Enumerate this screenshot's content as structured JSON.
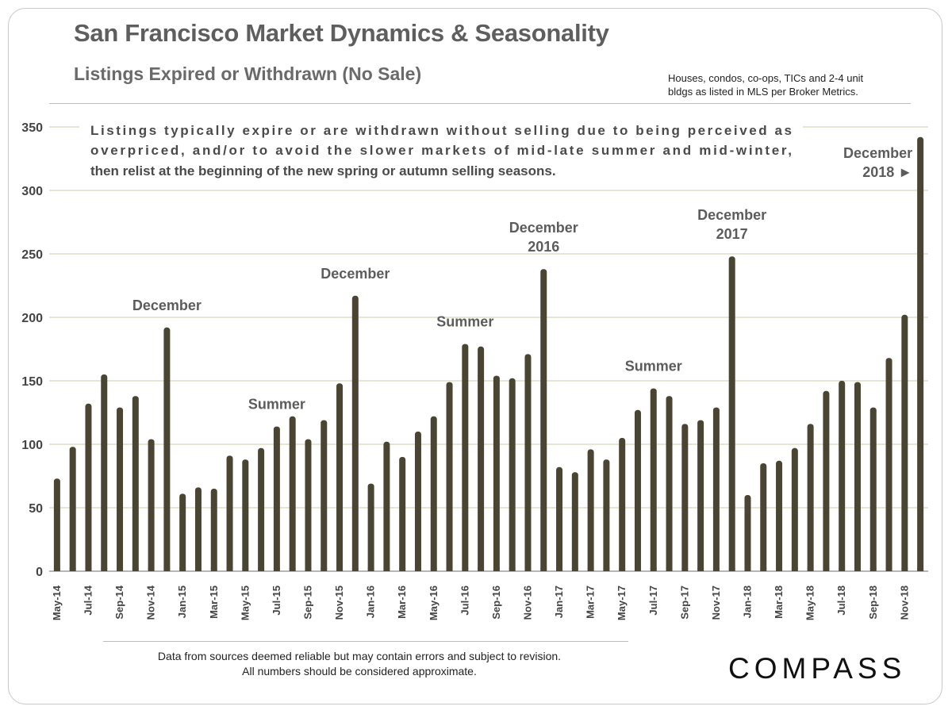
{
  "header": {
    "title": "San Francisco Market Dynamics & Seasonality",
    "subtitle": "Listings Expired or Withdrawn (No Sale)",
    "source_line1": "Houses, condos, co-ops, TICs and 2-4 unit",
    "source_line2": "bldgs as listed in MLS per Broker Metrics."
  },
  "note": {
    "line1": "Listings typically expire or are withdrawn without selling due to being perceived as",
    "line2": "overpriced, and/or to avoid the slower markets of mid-late summer and mid-winter,",
    "line3": "then relist at the beginning of the new spring or autumn selling seasons."
  },
  "footer": {
    "line1": "Data from sources deemed reliable but may contain errors and subject to revision.",
    "line2": "All numbers should be considered approximate.",
    "logo": "COMPASS"
  },
  "colors": {
    "bar": "#4a4532",
    "grid": "#c9cfa8"
  },
  "chart_data": {
    "type": "bar",
    "title": "Listings Expired or Withdrawn (No Sale)",
    "ylim": [
      0,
      350
    ],
    "yticks": [
      0,
      50,
      100,
      150,
      200,
      250,
      300,
      350
    ],
    "grid": true,
    "categories": [
      "May-14",
      "Jun-14",
      "Jul-14",
      "Aug-14",
      "Sep-14",
      "Oct-14",
      "Nov-14",
      "Dec-14",
      "Jan-15",
      "Feb-15",
      "Mar-15",
      "Apr-15",
      "May-15",
      "Jun-15",
      "Jul-15",
      "Aug-15",
      "Sep-15",
      "Oct-15",
      "Nov-15",
      "Dec-15",
      "Jan-16",
      "Feb-16",
      "Mar-16",
      "Apr-16",
      "May-16",
      "Jun-16",
      "Jul-16",
      "Aug-16",
      "Sep-16",
      "Oct-16",
      "Nov-16",
      "Dec-16",
      "Jan-17",
      "Feb-17",
      "Mar-17",
      "Apr-17",
      "May-17",
      "Jun-17",
      "Jul-17",
      "Aug-17",
      "Sep-17",
      "Oct-17",
      "Nov-17",
      "Dec-17",
      "Jan-18",
      "Feb-18",
      "Mar-18",
      "Apr-18",
      "May-18",
      "Jun-18",
      "Jul-18",
      "Aug-18",
      "Sep-18",
      "Oct-18",
      "Nov-18",
      "Dec-18"
    ],
    "tick_labels": [
      "May-14",
      "Jul-14",
      "Sep-14",
      "Nov-14",
      "Jan-15",
      "Mar-15",
      "May-15",
      "Jul-15",
      "Sep-15",
      "Nov-15",
      "Jan-16",
      "Mar-16",
      "May-16",
      "Jul-16",
      "Sep-16",
      "Nov-16",
      "Jan-17",
      "Mar-17",
      "May-17",
      "Jul-17",
      "Sep-17",
      "Nov-17",
      "Jan-18",
      "Mar-18",
      "May-18",
      "Jul-18",
      "Sep-18",
      "Nov-18"
    ],
    "values": [
      73,
      98,
      132,
      155,
      129,
      138,
      104,
      192,
      61,
      66,
      65,
      91,
      88,
      97,
      114,
      122,
      104,
      119,
      148,
      217,
      69,
      102,
      90,
      110,
      122,
      149,
      179,
      177,
      154,
      152,
      171,
      238,
      82,
      78,
      96,
      88,
      105,
      127,
      144,
      138,
      116,
      119,
      129,
      248,
      60,
      85,
      87,
      97,
      116,
      142,
      150,
      149,
      129,
      168,
      202,
      342
    ],
    "annotations": [
      {
        "index": 7,
        "lines": [
          "December"
        ]
      },
      {
        "index": 14,
        "lines": [
          "Summer"
        ]
      },
      {
        "index": 19,
        "lines": [
          "December"
        ]
      },
      {
        "index": 26,
        "lines": [
          "Summer"
        ]
      },
      {
        "index": 31,
        "lines": [
          "December",
          "2016"
        ]
      },
      {
        "index": 38,
        "lines": [
          "Summer"
        ]
      },
      {
        "index": 43,
        "lines": [
          "December",
          "2017"
        ]
      },
      {
        "index": 55,
        "lines": [
          "December",
          "2018 ►"
        ]
      }
    ]
  }
}
